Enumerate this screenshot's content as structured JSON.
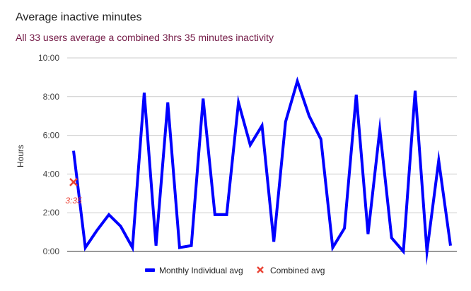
{
  "chart_data": {
    "type": "line",
    "title": "Average inactive minutes",
    "subtitle": "All  33 users average a combined 3hrs 35 minutes inactivity",
    "ylabel": "Hours",
    "xlabel": "",
    "ylim": [
      0,
      10
    ],
    "y_ticks": [
      {
        "value": 0,
        "label": "0:00"
      },
      {
        "value": 2,
        "label": "2:00"
      },
      {
        "value": 4,
        "label": "4:00"
      },
      {
        "value": 6,
        "label": "6:00"
      },
      {
        "value": 8,
        "label": "8:00"
      },
      {
        "value": 10,
        "label": "10:00"
      }
    ],
    "grid": true,
    "legend_position": "bottom",
    "series": [
      {
        "name": "Monthly Individual avg",
        "color": "#0000ff",
        "values": [
          5.2,
          0.2,
          1.1,
          1.9,
          1.3,
          0.2,
          8.2,
          0.3,
          7.7,
          0.2,
          0.3,
          7.9,
          1.9,
          1.9,
          7.7,
          5.5,
          6.5,
          0.5,
          6.7,
          8.8,
          7.0,
          5.8,
          0.2,
          1.2,
          8.1,
          0.9,
          6.3,
          0.7,
          0.0,
          8.3,
          0.0,
          4.7,
          0.3
        ]
      },
      {
        "name": "Combined avg",
        "color": "#ea4335",
        "type": "scatter",
        "marker": "x",
        "points": [
          {
            "x": 1,
            "y": 3.583,
            "label": "3:35"
          }
        ]
      }
    ]
  }
}
